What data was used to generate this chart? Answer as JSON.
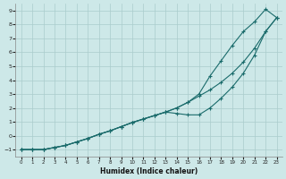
{
  "xlabel": "Humidex (Indice chaleur)",
  "xlim": [
    -0.5,
    23.5
  ],
  "ylim": [
    -1.5,
    9.5
  ],
  "xticks": [
    0,
    1,
    2,
    3,
    4,
    5,
    6,
    7,
    8,
    9,
    10,
    11,
    12,
    13,
    14,
    15,
    16,
    17,
    18,
    19,
    20,
    21,
    22,
    23
  ],
  "yticks": [
    -1,
    0,
    1,
    2,
    3,
    4,
    5,
    6,
    7,
    8,
    9
  ],
  "bg_color": "#cde8e8",
  "line_color": "#1a6b6b",
  "grid_color": "#aacccc",
  "x": [
    0,
    1,
    2,
    3,
    4,
    5,
    6,
    7,
    8,
    9,
    10,
    11,
    12,
    13,
    14,
    15,
    16,
    17,
    18,
    19,
    20,
    21,
    22,
    23
  ],
  "y_straight": [
    -1,
    -1,
    -1,
    -0.85,
    -0.7,
    -0.45,
    -0.2,
    0.1,
    0.35,
    0.65,
    0.95,
    1.2,
    1.45,
    1.7,
    2.0,
    2.4,
    2.85,
    3.3,
    3.85,
    4.5,
    5.3,
    6.3,
    7.5,
    8.5
  ],
  "y_upper": [
    -1,
    -1,
    -1,
    -0.85,
    -0.7,
    -0.45,
    -0.2,
    0.1,
    0.35,
    0.65,
    0.95,
    1.2,
    1.45,
    1.7,
    2.0,
    2.4,
    3.0,
    4.3,
    5.4,
    6.5,
    7.5,
    8.2,
    9.1,
    8.5
  ],
  "y_lower": [
    -1,
    -1,
    -1,
    -0.85,
    -0.7,
    -0.45,
    -0.2,
    0.1,
    0.35,
    0.65,
    0.95,
    1.2,
    1.45,
    1.7,
    1.6,
    1.5,
    1.5,
    2.0,
    2.7,
    3.5,
    4.5,
    5.8,
    7.5,
    8.5
  ]
}
